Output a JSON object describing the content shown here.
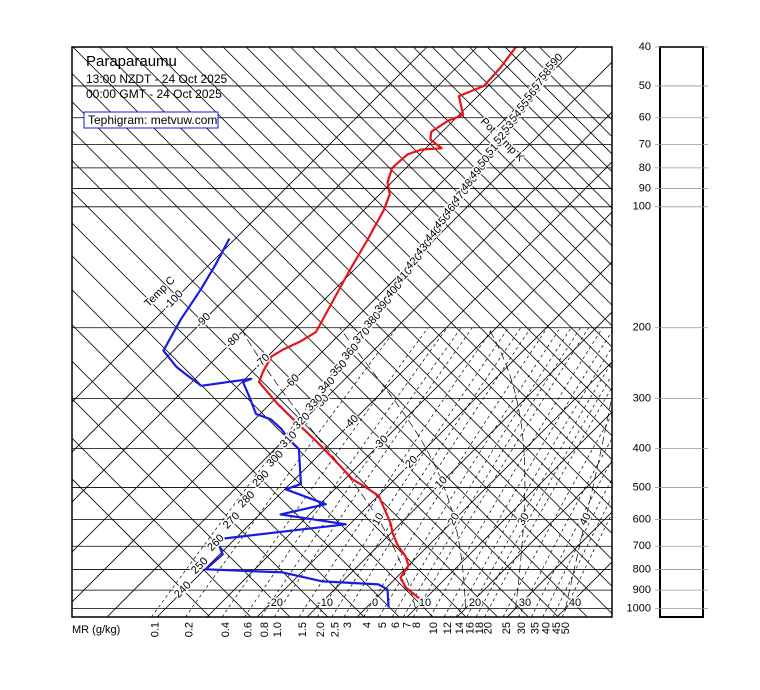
{
  "chart_data": {
    "type": "tephigram",
    "title": "Paraparaumu",
    "subtitle": [
      "13:00 NZDT - 24 Oct 2025",
      "00:00 GMT - 24 Oct 2025"
    ],
    "credit": "Tephigram: metvuw.com",
    "ylim": [
      1050,
      40
    ],
    "log_scale": true,
    "yticks": [
      40,
      50,
      60,
      70,
      80,
      90,
      100,
      200,
      300,
      400,
      500,
      600,
      700,
      800,
      900,
      1000
    ],
    "isotherm_label": "Temp C",
    "isotherms": [
      -100,
      -90,
      -80,
      -70,
      -60,
      -50,
      -40,
      -30,
      -20,
      -10,
      0,
      10,
      20,
      30,
      40
    ],
    "isentrope_label": "Pot Temp K",
    "isentropes": [
      240,
      250,
      260,
      270,
      280,
      290,
      300,
      310,
      320,
      330,
      340,
      350,
      360,
      370,
      380,
      390,
      400,
      410,
      420,
      430,
      440,
      450,
      460,
      470,
      480,
      490,
      500,
      510,
      520,
      530,
      540,
      550,
      560,
      570,
      580,
      590
    ],
    "mixing_ratio_label": "MR (g/kg)",
    "mixing_ratios": [
      0.1,
      0.2,
      0.4,
      0.6,
      0.8,
      {
        "value": 1,
        "label": "1.0"
      },
      1.5,
      {
        "value": 2,
        "label": "2.0"
      },
      2.5,
      3,
      4,
      5,
      6,
      7,
      8,
      10,
      12,
      14,
      16,
      18,
      20,
      25,
      30,
      35,
      40,
      45,
      50
    ],
    "moist_adiabats": [
      10,
      20,
      30,
      40
    ],
    "series": [
      {
        "color": "#e8141a",
        "pressure": [
          950,
          886,
          837,
          781,
          742,
          696,
          650,
          614,
          560,
          525,
          499,
          477,
          425,
          385,
          345,
          310,
          273,
          258,
          236,
          226,
          216,
          205,
          174,
          144,
          122,
          102,
          93,
          87,
          80,
          74,
          72,
          71.5,
          68,
          65,
          61,
          59,
          53,
          50,
          45,
          40
        ],
        "values": [
          9.2,
          3.8,
          0.8,
          0,
          -2.4,
          -6.2,
          -9.6,
          -12,
          -16.6,
          -19.8,
          -24.2,
          -28.4,
          -36.2,
          -43,
          -50.8,
          -58.4,
          -66.6,
          -67.8,
          -69.2,
          -68.2,
          -66.4,
          -65.2,
          -67.8,
          -70.8,
          -73.2,
          -76,
          -78,
          -80.8,
          -82.8,
          -82.4,
          -80.6,
          -76.8,
          -80.8,
          -82.2,
          -81,
          -79.2,
          -83.8,
          -80.8,
          -81.2,
          -82.2
        ]
      },
      {
        "color": "#1a1ae6",
        "pressure": [
          994,
          897,
          871,
          856,
          813,
          799,
          733,
          673,
          617,
          583,
          550,
          505,
          490,
          401,
          379,
          357,
          338,
          328,
          297,
          273,
          268,
          279,
          261,
          250,
          228,
          190,
          160,
          139,
          120
        ],
        "values": [
          4.4,
          0.6,
          -2.2,
          -14,
          -23.8,
          -39.8,
          -39.4,
          -43.6,
          -20.8,
          -35.8,
          -28.8,
          -39.8,
          -37.8,
          -45.2,
          -49.2,
          -52.8,
          -56.8,
          -60.8,
          -65.6,
          -69.8,
          -68.8,
          -77.4,
          -82.8,
          -86.2,
          -92,
          -94.8,
          -96.8,
          -98.8,
          -101.2
        ]
      }
    ]
  }
}
